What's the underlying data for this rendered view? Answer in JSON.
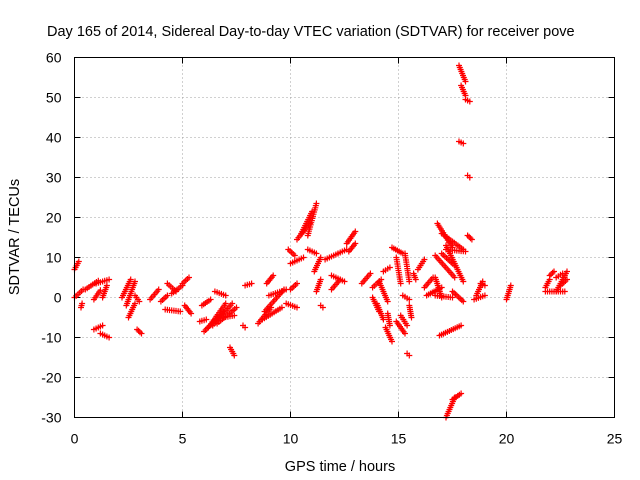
{
  "chart_data": {
    "type": "scatter",
    "title": "Day 165 of 2014, Sidereal Day-to-day VTEC variation (SDTVAR) for receiver pove",
    "xlabel": "GPS time / hours",
    "ylabel": "SDTVAR / TECUs",
    "xlim": [
      0,
      25
    ],
    "ylim": [
      -30,
      60
    ],
    "xticks": [
      "0",
      "5",
      "10",
      "15",
      "20",
      "25"
    ],
    "yticks": [
      "-30",
      "-20",
      "-10",
      "0",
      "10",
      "20",
      "30",
      "40",
      "50",
      "60"
    ],
    "grid": true,
    "marker": "+",
    "color": "#ff0000",
    "series": [
      {
        "name": "SDTVAR",
        "segments": [
          [
            [
              0.0,
              7.0
            ],
            [
              0.2,
              9.0
            ]
          ],
          [
            [
              0.0,
              0.0
            ],
            [
              0.4,
              2.0
            ]
          ],
          [
            [
              0.3,
              -2.5
            ],
            [
              0.35,
              -1.5
            ]
          ],
          [
            [
              0.5,
              2.0
            ],
            [
              1.1,
              4.2
            ]
          ],
          [
            [
              1.0,
              3.5
            ],
            [
              1.6,
              4.5
            ]
          ],
          [
            [
              0.9,
              -0.5
            ],
            [
              1.2,
              1.8
            ]
          ],
          [
            [
              1.3,
              0.0
            ],
            [
              1.5,
              3.0
            ]
          ],
          [
            [
              0.9,
              -8.0
            ],
            [
              1.3,
              -7.0
            ]
          ],
          [
            [
              1.2,
              -9.0
            ],
            [
              1.6,
              -10.0
            ]
          ],
          [
            [
              2.2,
              0.0
            ],
            [
              2.6,
              4.5
            ]
          ],
          [
            [
              2.4,
              -2.0
            ],
            [
              2.8,
              4.0
            ]
          ],
          [
            [
              2.5,
              -5.0
            ],
            [
              2.8,
              -1.5
            ]
          ],
          [
            [
              2.9,
              -8.0
            ],
            [
              3.1,
              -9.0
            ]
          ],
          [
            [
              2.8,
              0.5
            ],
            [
              3.0,
              -1.0
            ]
          ],
          [
            [
              3.5,
              -0.5
            ],
            [
              3.9,
              2.0
            ]
          ],
          [
            [
              4.0,
              -1.0
            ],
            [
              4.3,
              0.5
            ]
          ],
          [
            [
              4.2,
              -3.0
            ],
            [
              4.9,
              -3.5
            ]
          ],
          [
            [
              4.3,
              3.5
            ],
            [
              4.7,
              1.5
            ]
          ],
          [
            [
              4.5,
              1.0
            ],
            [
              5.0,
              3.0
            ]
          ],
          [
            [
              5.0,
              3.5
            ],
            [
              5.3,
              5.0
            ]
          ],
          [
            [
              5.1,
              -2.0
            ],
            [
              5.4,
              -4.0
            ]
          ],
          [
            [
              5.8,
              -6.0
            ],
            [
              6.1,
              -5.5
            ]
          ],
          [
            [
              5.9,
              -2.0
            ],
            [
              6.3,
              -0.5
            ]
          ],
          [
            [
              6.0,
              -8.5
            ],
            [
              6.9,
              -3.5
            ]
          ],
          [
            [
              6.2,
              -7.5
            ],
            [
              7.0,
              -1.5
            ]
          ],
          [
            [
              6.4,
              -7.0
            ],
            [
              7.3,
              -1.5
            ]
          ],
          [
            [
              6.6,
              -6.5
            ],
            [
              7.5,
              -2.5
            ]
          ],
          [
            [
              6.5,
              1.5
            ],
            [
              7.0,
              0.5
            ]
          ],
          [
            [
              6.9,
              -5.0
            ],
            [
              7.4,
              -4.5
            ]
          ],
          [
            [
              7.2,
              -12.5
            ],
            [
              7.4,
              -14.5
            ]
          ],
          [
            [
              7.8,
              -7.0
            ],
            [
              7.9,
              -7.5
            ]
          ],
          [
            [
              7.9,
              3.0
            ],
            [
              8.2,
              3.5
            ]
          ],
          [
            [
              8.5,
              -6.5
            ],
            [
              9.1,
              -2.5
            ]
          ],
          [
            [
              8.7,
              -5.5
            ],
            [
              9.6,
              -2.5
            ]
          ],
          [
            [
              8.8,
              -3.5
            ],
            [
              9.7,
              2.0
            ]
          ],
          [
            [
              9.0,
              0.5
            ],
            [
              9.8,
              2.0
            ]
          ],
          [
            [
              8.9,
              3.5
            ],
            [
              9.2,
              5.5
            ]
          ],
          [
            [
              9.8,
              -1.5
            ],
            [
              10.3,
              -2.5
            ]
          ],
          [
            [
              10.0,
              2.0
            ],
            [
              10.3,
              3.5
            ]
          ],
          [
            [
              9.9,
              12.0
            ],
            [
              10.2,
              10.5
            ]
          ],
          [
            [
              10.0,
              8.5
            ],
            [
              10.6,
              10.0
            ]
          ],
          [
            [
              10.3,
              14.5
            ],
            [
              10.9,
              18.5
            ]
          ],
          [
            [
              10.5,
              16.0
            ],
            [
              11.0,
              21.5
            ]
          ],
          [
            [
              10.8,
              15.5
            ],
            [
              11.2,
              23.5
            ]
          ],
          [
            [
              10.8,
              12.0
            ],
            [
              11.2,
              11.0
            ]
          ],
          [
            [
              11.1,
              6.5
            ],
            [
              11.4,
              10.0
            ]
          ],
          [
            [
              11.2,
              1.5
            ],
            [
              11.4,
              4.5
            ]
          ],
          [
            [
              11.4,
              -2.0
            ],
            [
              11.5,
              -2.5
            ]
          ],
          [
            [
              11.6,
              9.5
            ],
            [
              12.2,
              11.0
            ]
          ],
          [
            [
              11.9,
              5.5
            ],
            [
              12.5,
              4.0
            ]
          ],
          [
            [
              11.9,
              2.0
            ],
            [
              12.3,
              4.5
            ]
          ],
          [
            [
              12.2,
              11.0
            ],
            [
              12.6,
              12.0
            ]
          ],
          [
            [
              12.6,
              13.5
            ],
            [
              13.0,
              16.5
            ]
          ],
          [
            [
              12.7,
              11.5
            ],
            [
              13.0,
              13.5
            ]
          ],
          [
            [
              13.3,
              3.5
            ],
            [
              13.7,
              6.0
            ]
          ],
          [
            [
              13.8,
              2.5
            ],
            [
              14.2,
              4.5
            ]
          ],
          [
            [
              13.8,
              0.0
            ],
            [
              14.1,
              -3.5
            ]
          ],
          [
            [
              14.0,
              -1.5
            ],
            [
              14.3,
              -5.5
            ]
          ],
          [
            [
              14.1,
              4.0
            ],
            [
              14.5,
              -1.0
            ]
          ],
          [
            [
              14.3,
              6.5
            ],
            [
              14.6,
              7.5
            ]
          ],
          [
            [
              14.4,
              -7.5
            ],
            [
              14.7,
              -11.0
            ]
          ],
          [
            [
              14.5,
              -4.0
            ],
            [
              14.6,
              -7.0
            ]
          ],
          [
            [
              14.7,
              12.5
            ],
            [
              15.2,
              11.0
            ]
          ],
          [
            [
              14.9,
              10.0
            ],
            [
              15.1,
              3.5
            ]
          ],
          [
            [
              14.9,
              -6.0
            ],
            [
              15.3,
              -9.0
            ]
          ],
          [
            [
              15.1,
              -4.5
            ],
            [
              15.4,
              -7.0
            ]
          ],
          [
            [
              15.2,
              0.5
            ],
            [
              15.5,
              -0.5
            ]
          ],
          [
            [
              15.3,
              11.0
            ],
            [
              15.5,
              4.0
            ]
          ],
          [
            [
              15.4,
              -14.0
            ],
            [
              15.5,
              -14.5
            ]
          ],
          [
            [
              15.5,
              -2.0
            ],
            [
              15.6,
              -5.0
            ]
          ],
          [
            [
              15.7,
              6.0
            ],
            [
              15.8,
              4.5
            ]
          ],
          [
            [
              15.9,
              7.0
            ],
            [
              16.2,
              9.5
            ]
          ],
          [
            [
              16.2,
              2.5
            ],
            [
              16.6,
              5.0
            ]
          ],
          [
            [
              16.3,
              0.5
            ],
            [
              17.0,
              2.5
            ]
          ],
          [
            [
              16.7,
              5.0
            ],
            [
              17.0,
              0.0
            ]
          ],
          [
            [
              16.7,
              0.5
            ],
            [
              17.5,
              0.0
            ]
          ],
          [
            [
              16.7,
              10.5
            ],
            [
              17.6,
              5.0
            ]
          ],
          [
            [
              17.0,
              11.0
            ],
            [
              17.6,
              8.0
            ]
          ],
          [
            [
              16.8,
              18.5
            ],
            [
              17.5,
              12.5
            ]
          ],
          [
            [
              17.0,
              16.0
            ],
            [
              18.0,
              12.0
            ]
          ],
          [
            [
              17.2,
              13.0
            ],
            [
              18.0,
              4.0
            ]
          ],
          [
            [
              17.2,
              12.0
            ],
            [
              18.1,
              11.5
            ]
          ],
          [
            [
              17.5,
              1.5
            ],
            [
              18.0,
              -1.0
            ]
          ],
          [
            [
              17.2,
              -30.0
            ],
            [
              17.6,
              -25.0
            ]
          ],
          [
            [
              17.5,
              -25.5
            ],
            [
              17.9,
              -24.0
            ]
          ],
          [
            [
              16.9,
              -9.5
            ],
            [
              17.9,
              -7.0
            ]
          ],
          [
            [
              17.8,
              58.0
            ],
            [
              18.1,
              54.0
            ]
          ],
          [
            [
              17.9,
              53.0
            ],
            [
              18.1,
              50.5
            ]
          ],
          [
            [
              18.1,
              49.5
            ],
            [
              18.3,
              49.0
            ]
          ],
          [
            [
              17.8,
              39.0
            ],
            [
              18.0,
              38.5
            ]
          ],
          [
            [
              18.2,
              30.5
            ],
            [
              18.3,
              30.0
            ]
          ],
          [
            [
              18.2,
              15.5
            ],
            [
              18.4,
              14.5
            ]
          ],
          [
            [
              18.5,
              -0.5
            ],
            [
              19.0,
              0.5
            ]
          ],
          [
            [
              18.6,
              0.5
            ],
            [
              18.9,
              4.0
            ]
          ],
          [
            [
              18.8,
              3.5
            ],
            [
              19.0,
              3.0
            ]
          ],
          [
            [
              20.0,
              -0.5
            ],
            [
              20.2,
              3.0
            ]
          ],
          [
            [
              21.8,
              2.5
            ],
            [
              22.0,
              4.5
            ]
          ],
          [
            [
              22.3,
              5.0
            ],
            [
              22.6,
              6.0
            ]
          ],
          [
            [
              21.8,
              1.5
            ],
            [
              22.7,
              1.5
            ]
          ],
          [
            [
              22.0,
              5.5
            ],
            [
              22.2,
              6.5
            ]
          ],
          [
            [
              22.3,
              1.5
            ],
            [
              22.8,
              6.5
            ]
          ],
          [
            [
              22.5,
              3.0
            ],
            [
              22.8,
              4.5
            ]
          ]
        ]
      }
    ]
  }
}
